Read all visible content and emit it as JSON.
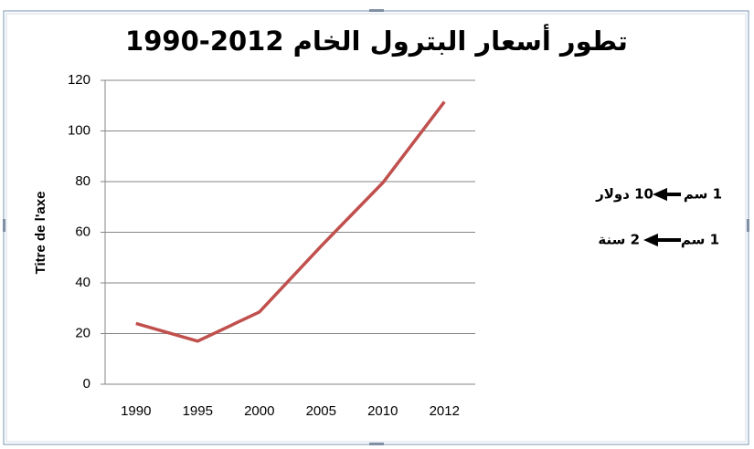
{
  "chart_data": {
    "type": "line",
    "title": "تطور أسعار البترول الخام 2012-1990",
    "y_label": "Titre de l'axe",
    "categories": [
      "1990",
      "1995",
      "2000",
      "2005",
      "2010",
      "2012"
    ],
    "values": [
      24,
      17,
      28.5,
      54.5,
      79.5,
      111.5
    ],
    "color": "#c0504d",
    "ylim": [
      0,
      120
    ],
    "yticks": [
      0,
      20,
      40,
      60,
      80,
      100,
      120
    ],
    "grid": true,
    "annotations": [
      [
        "1 سم",
        "10 دولار"
      ],
      [
        "1 سم",
        "2 سنة"
      ]
    ]
  }
}
